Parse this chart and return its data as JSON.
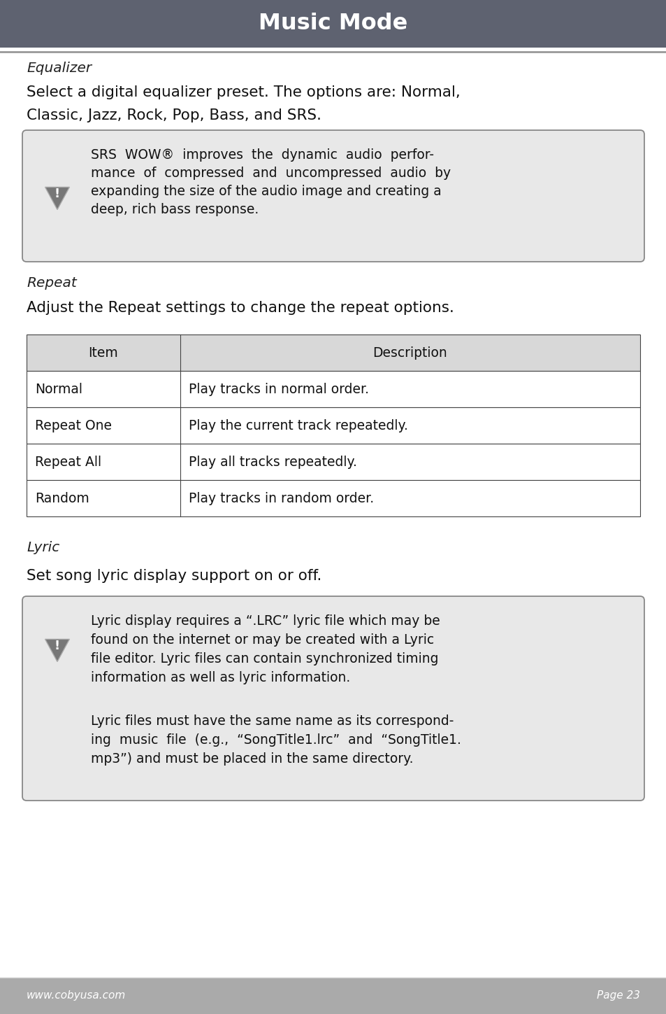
{
  "title": "Music Mode",
  "header_bg": "#5e6270",
  "header_text_color": "#ffffff",
  "footer_bg": "#aaaaaa",
  "footer_text_color": "#ffffff",
  "footer_left": "www.cobyusa.com",
  "footer_right": "Page 23",
  "bg_color": "#ffffff",
  "equalizer_heading": "Equalizer",
  "equalizer_body_1": "Select a digital equalizer preset. The options are: Normal,",
  "equalizer_body_2": "Classic, Jazz, Rock, Pop, Bass, and SRS.",
  "srs_note_lines": [
    "SRS  WOW®  improves  the  dynamic  audio  perfor-",
    "mance  of  compressed  and  uncompressed  audio  by",
    "expanding the size of the audio image and creating a",
    "deep, rich bass response."
  ],
  "repeat_heading": "Repeat",
  "repeat_body": "Adjust the Repeat settings to change the repeat options.",
  "table_header": [
    "Item",
    "Description"
  ],
  "table_rows": [
    [
      "Normal",
      "Play tracks in normal order."
    ],
    [
      "Repeat One",
      "Play the current track repeatedly."
    ],
    [
      "Repeat All",
      "Play all tracks repeatedly."
    ],
    [
      "Random",
      "Play tracks in random order."
    ]
  ],
  "lyric_heading": "Lyric",
  "lyric_body": "Set song lyric display support on or off.",
  "lyric_note1_lines": [
    "Lyric display requires a “.LRC” lyric file which may be",
    "found on the internet or may be created with a Lyric",
    "file editor. Lyric files can contain synchronized timing",
    "information as well as lyric information."
  ],
  "lyric_note2_lines": [
    "Lyric files must have the same name as its correspond-",
    "ing  music  file  (e.g.,  “SongTitle1.lrc”  and  “SongTitle1.",
    "mp3”) and must be placed in the same directory."
  ],
  "note_box_bg": "#e8e8e8",
  "note_box_border": "#888888",
  "table_border": "#444444",
  "table_header_bg": "#d8d8d8"
}
